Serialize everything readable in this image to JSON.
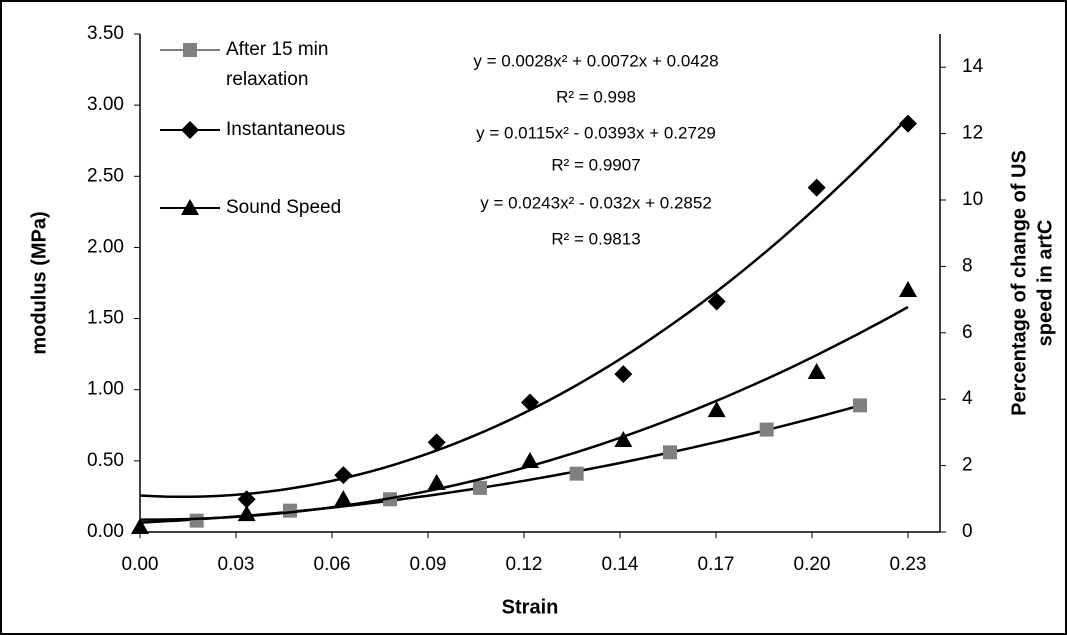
{
  "chart_data": {
    "type": "scatter",
    "xlabel": "Strain",
    "ylabel": "modulus (MPa)",
    "y2label": [
      "Percentage of change of US",
      "speed in artC"
    ],
    "xlim": [
      0,
      0.24
    ],
    "xticks": [
      {
        "value": 0,
        "label": "0.00"
      },
      {
        "value": 0.0288,
        "label": "0.03"
      },
      {
        "value": 0.0576,
        "label": "0.06"
      },
      {
        "value": 0.0864,
        "label": "0.09"
      },
      {
        "value": 0.1152,
        "label": "0.12"
      },
      {
        "value": 0.144,
        "label": "0.14"
      },
      {
        "value": 0.1728,
        "label": "0.17"
      },
      {
        "value": 0.2016,
        "label": "0.20"
      },
      {
        "value": 0.2304,
        "label": "0.23"
      }
    ],
    "ylim": [
      0,
      3.5
    ],
    "yticks": [
      {
        "value": 0,
        "label": "0.00"
      },
      {
        "value": 0.5,
        "label": "0.50"
      },
      {
        "value": 1,
        "label": "1.00"
      },
      {
        "value": 1.5,
        "label": "1.50"
      },
      {
        "value": 2,
        "label": "2.00"
      },
      {
        "value": 2.5,
        "label": "2.50"
      },
      {
        "value": 3,
        "label": "3.00"
      },
      {
        "value": 3.5,
        "label": "3.50"
      }
    ],
    "y2lim": [
      0,
      15
    ],
    "y2ticks": [
      0,
      2,
      4,
      6,
      8,
      10,
      12,
      14
    ],
    "series": [
      {
        "name": "After 15 min relaxation",
        "marker": "square",
        "color": "#808080",
        "x": [
          0.017,
          0.045,
          0.075,
          0.102,
          0.131,
          0.159,
          0.188,
          0.216
        ],
        "values": [
          0.08,
          0.15,
          0.23,
          0.31,
          0.41,
          0.56,
          0.72,
          0.89
        ]
      },
      {
        "name": "Instantaneous",
        "marker": "diamond",
        "color": "#000000",
        "x": [
          0.032,
          0.061,
          0.089,
          0.117,
          0.145,
          0.173,
          0.203,
          0.2304
        ],
        "values": [
          0.23,
          0.4,
          0.63,
          0.91,
          1.11,
          1.62,
          2.42,
          2.87
        ]
      },
      {
        "name": "Sound Speed",
        "marker": "triangle",
        "color": "#000000",
        "axis": "y2",
        "x": [
          0,
          0.032,
          0.061,
          0.089,
          0.117,
          0.145,
          0.173,
          0.203,
          0.2304
        ],
        "values": [
          0.15,
          0.54,
          0.99,
          1.48,
          2.14,
          2.77,
          3.67,
          4.82,
          7.29
        ]
      }
    ],
    "annotations": [
      "y = 0.0028x² + 0.0072x + 0.0428",
      "R² = 0.998",
      "y = 0.0115x² - 0.0393x + 0.2729",
      "R² = 0.9907",
      "y = 0.0243x² - 0.032x + 0.2852",
      "R² = 0.9813"
    ]
  }
}
